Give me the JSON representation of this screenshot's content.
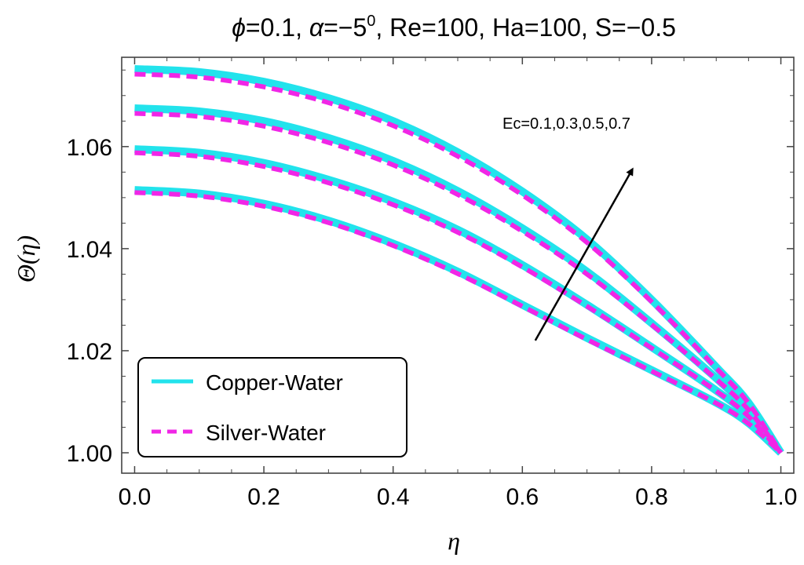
{
  "chart_data": {
    "type": "line",
    "title": "ϕ=0.1, α=−5⁰, Re=100, Ha=100, S=−0.5",
    "title_parts": {
      "phi": "ϕ",
      "phi_val": "=0.1, ",
      "alpha": "α",
      "alpha_val": "=−5",
      "alpha_sup": "0",
      "rest": ", Re=100, Ha=100, S=−0.5"
    },
    "xlabel": "η",
    "ylabel": "Θ(η)",
    "xlim": [
      -0.02,
      1.02
    ],
    "ylim": [
      0.996,
      1.0775
    ],
    "xticks": [
      0.0,
      0.2,
      0.4,
      0.6,
      0.8,
      1.0
    ],
    "xtick_labels": [
      "0.0",
      "0.2",
      "0.4",
      "0.6",
      "0.8",
      "1.0"
    ],
    "yticks": [
      1.0,
      1.02,
      1.04,
      1.06
    ],
    "ytick_labels": [
      "1.00",
      "1.02",
      "1.04",
      "1.06"
    ],
    "x": [
      0.0,
      0.1,
      0.2,
      0.3,
      0.4,
      0.5,
      0.6,
      0.7,
      0.8,
      0.9,
      0.95,
      1.0
    ],
    "series": [
      {
        "name": "Copper-Water",
        "Ec": "0.1",
        "style": "solid",
        "color": "#22e3ec",
        "values": [
          1.0515,
          1.0508,
          1.0488,
          1.0455,
          1.041,
          1.0355,
          1.029,
          1.0225,
          1.0162,
          1.0098,
          1.0058,
          1.0
        ]
      },
      {
        "name": "Copper-Water",
        "Ec": "0.3",
        "style": "solid",
        "color": "#22e3ec",
        "values": [
          1.0595,
          1.0588,
          1.0568,
          1.0535,
          1.0492,
          1.0437,
          1.0368,
          1.029,
          1.0207,
          1.0122,
          1.0072,
          1.0
        ]
      },
      {
        "name": "Copper-Water",
        "Ec": "0.5",
        "style": "solid",
        "color": "#22e3ec",
        "values": [
          1.0675,
          1.0669,
          1.065,
          1.0617,
          1.0572,
          1.0513,
          1.044,
          1.0355,
          1.0254,
          1.0146,
          1.0085,
          1.0
        ]
      },
      {
        "name": "Copper-Water",
        "Ec": "0.7",
        "style": "solid",
        "color": "#22e3ec",
        "values": [
          1.0752,
          1.0746,
          1.0727,
          1.0695,
          1.065,
          1.0589,
          1.0512,
          1.0418,
          1.03,
          1.0168,
          1.0098,
          1.0
        ]
      },
      {
        "name": "Silver-Water",
        "Ec": "0.1",
        "style": "dashed",
        "color": "#f026e6",
        "values": [
          1.051,
          1.0503,
          1.0483,
          1.0451,
          1.0406,
          1.0351,
          1.0287,
          1.0222,
          1.016,
          1.0097,
          1.0057,
          1.0
        ]
      },
      {
        "name": "Silver-Water",
        "Ec": "0.3",
        "style": "dashed",
        "color": "#f026e6",
        "values": [
          1.0588,
          1.0581,
          1.0561,
          1.0529,
          1.0486,
          1.0432,
          1.0364,
          1.0287,
          1.0205,
          1.0121,
          1.0071,
          1.0
        ]
      },
      {
        "name": "Silver-Water",
        "Ec": "0.5",
        "style": "dashed",
        "color": "#f026e6",
        "values": [
          1.0665,
          1.0659,
          1.064,
          1.0608,
          1.0564,
          1.0506,
          1.0434,
          1.035,
          1.0251,
          1.0144,
          1.0084,
          1.0
        ]
      },
      {
        "name": "Silver-Water",
        "Ec": "0.7",
        "style": "dashed",
        "color": "#f026e6",
        "values": [
          1.0742,
          1.0736,
          1.0717,
          1.0686,
          1.0641,
          1.0581,
          1.0505,
          1.0412,
          1.0296,
          1.0166,
          1.0097,
          1.0
        ]
      }
    ],
    "legend": {
      "placement": "bottom-left",
      "entries": [
        {
          "label": "Copper-Water",
          "style": "solid",
          "color": "#22e3ec"
        },
        {
          "label": "Silver-Water",
          "style": "dashed",
          "color": "#f026e6"
        }
      ]
    },
    "annotation": {
      "text": "Ec=0.1,0.3,0.5,0.7",
      "arrow_from": [
        0.62,
        1.022
      ],
      "arrow_to": [
        0.77,
        1.0555
      ]
    },
    "grid": false
  }
}
